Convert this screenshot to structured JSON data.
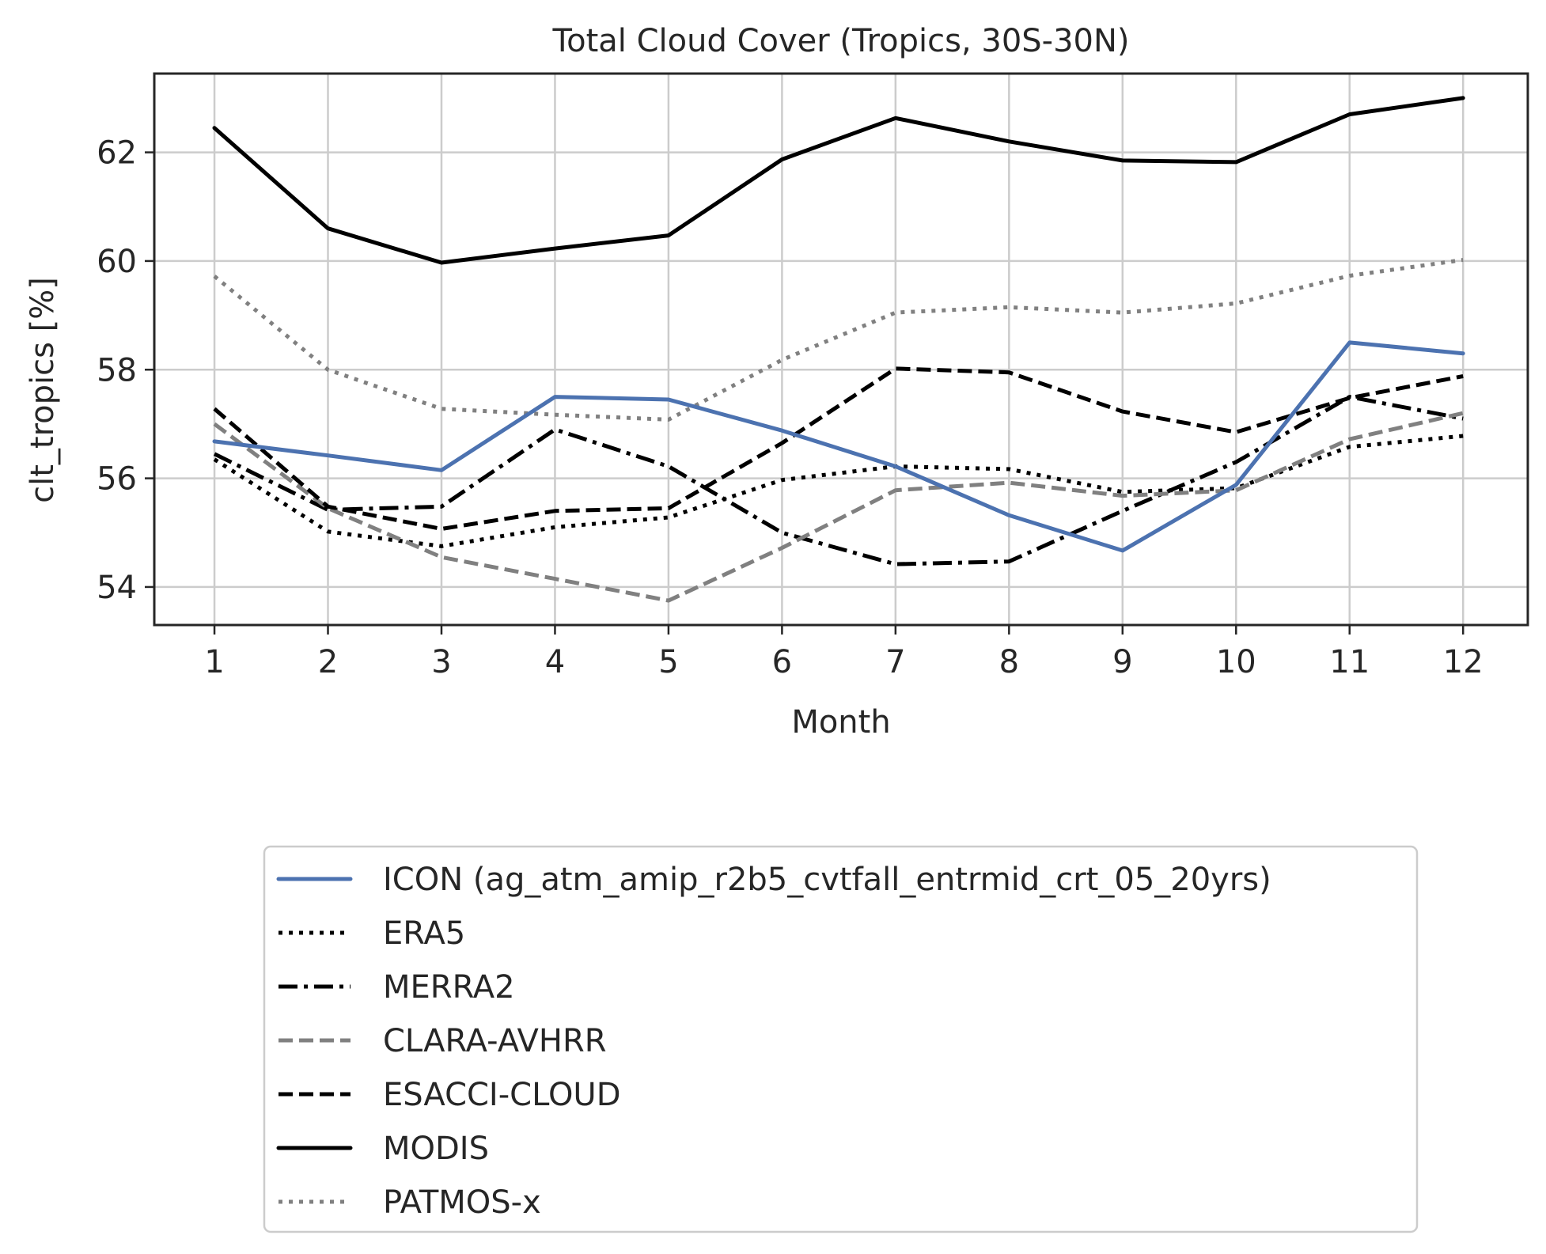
{
  "chart_data": {
    "type": "line",
    "title": "Total Cloud Cover (Tropics, 30S-30N)",
    "xlabel": "Month",
    "ylabel": "clt_tropics [%]",
    "x": [
      1,
      2,
      3,
      4,
      5,
      6,
      7,
      8,
      9,
      10,
      11,
      12
    ],
    "xlim": [
      0.47,
      12.57
    ],
    "ylim": [
      53.3,
      63.45
    ],
    "xticks": [
      "1",
      "2",
      "3",
      "4",
      "5",
      "6",
      "7",
      "8",
      "9",
      "10",
      "11",
      "12"
    ],
    "yticks": [
      "54",
      "56",
      "58",
      "60",
      "62"
    ],
    "grid": true,
    "legend_position": "below plot",
    "series": [
      {
        "name": "ICON (ag_atm_amip_r2b5_cvtfall_entrmid_crt_05_20yrs)",
        "color": "#4c72b0",
        "style": "solid",
        "values": [
          56.68,
          56.42,
          56.15,
          57.5,
          57.45,
          56.88,
          56.22,
          55.32,
          54.67,
          55.88,
          58.5,
          58.3
        ]
      },
      {
        "name": "ERA5",
        "color": "#000000",
        "style": "dotted",
        "values": [
          56.35,
          55.02,
          54.75,
          55.1,
          55.28,
          55.97,
          56.22,
          56.17,
          55.75,
          55.82,
          56.58,
          56.78
        ]
      },
      {
        "name": "MERRA2",
        "color": "#000000",
        "style": "dashdot",
        "values": [
          56.45,
          55.42,
          55.48,
          56.9,
          56.22,
          55.0,
          54.42,
          54.47,
          55.4,
          56.3,
          57.5,
          57.1
        ]
      },
      {
        "name": "CLARA-AVHRR",
        "color": "#808080",
        "style": "dashed",
        "values": [
          57.0,
          55.45,
          54.55,
          54.15,
          53.75,
          54.72,
          55.78,
          55.92,
          55.68,
          55.78,
          56.72,
          57.2
        ]
      },
      {
        "name": "ESACCI-CLOUD",
        "color": "#000000",
        "style": "dashed",
        "values": [
          57.28,
          55.48,
          55.07,
          55.4,
          55.45,
          56.65,
          58.02,
          57.95,
          57.23,
          56.85,
          57.48,
          57.88
        ]
      },
      {
        "name": "MODIS",
        "color": "#000000",
        "style": "solid",
        "values": [
          62.45,
          60.6,
          59.97,
          60.23,
          60.47,
          61.87,
          62.63,
          62.2,
          61.85,
          61.82,
          62.7,
          63.0
        ]
      },
      {
        "name": "PATMOS-x",
        "color": "#808080",
        "style": "dotted",
        "values": [
          59.72,
          58.0,
          57.28,
          57.17,
          57.08,
          58.18,
          59.05,
          59.15,
          59.05,
          59.22,
          59.73,
          60.02
        ]
      }
    ]
  }
}
